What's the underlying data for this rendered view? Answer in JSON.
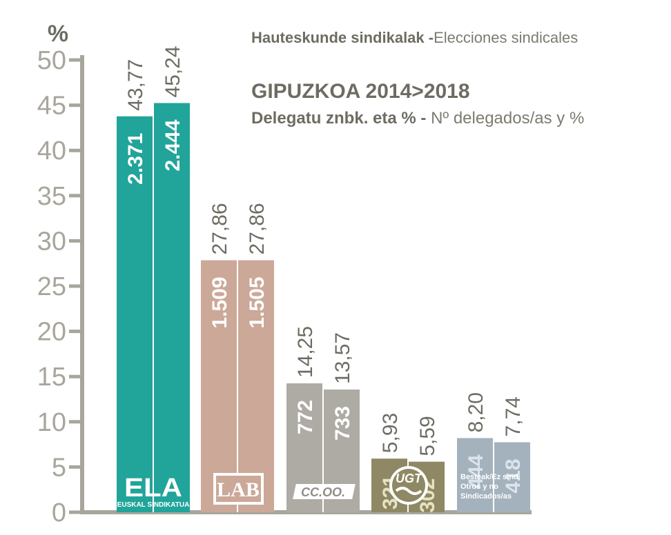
{
  "header": {
    "top_bold": "Hauteskunde sindikalak -",
    "top_light": "Elecciones sindicales",
    "title": "GIPUZKOA 2014>2018",
    "sub_bold": "Delegatu znbk. eta % -",
    "sub_light": "Nº delegados/as y %"
  },
  "chart_data": {
    "type": "bar",
    "title": "GIPUZKOA 2014>2018",
    "ylabel": "%",
    "ylim": [
      0,
      50
    ],
    "yticks": [
      "0",
      "5",
      "10",
      "15",
      "20",
      "25",
      "30",
      "35",
      "40",
      "45",
      "50"
    ],
    "years": [
      "2014",
      "2018"
    ],
    "categories": [
      "ELA",
      "LAB",
      "CC.OO.",
      "UGT",
      "Besteak/Ez sind. Otros y no Sindicados/as"
    ],
    "series": [
      {
        "name": "2014",
        "values": [
          43.77,
          27.86,
          14.25,
          5.93,
          8.2
        ],
        "labels": [
          "43,77",
          "27,86",
          "14,25",
          "5,93",
          "8,20"
        ],
        "delegates": [
          "2.371",
          "1.509",
          "772",
          "321",
          "444"
        ]
      },
      {
        "name": "2018",
        "values": [
          45.24,
          27.86,
          13.57,
          5.59,
          7.74
        ],
        "labels": [
          "45,24",
          "27,86",
          "13,57",
          "5,59",
          "7,74"
        ],
        "delegates": [
          "2.444",
          "1.505",
          "733",
          "302",
          "418"
        ]
      }
    ],
    "colors": [
      "#21a49a",
      "#cba898",
      "#adaba3",
      "#8e8864",
      "#a4b2bd"
    ],
    "value_label_color": "#6e6c62",
    "delegate_label_colors": [
      "#ffffff",
      "#ffffff",
      "#ffffff",
      "#e8e2c0",
      "#dbe4ec"
    ]
  },
  "logos": {
    "ela": {
      "name": "ELA",
      "sub": "EUSKAL SINDIKATUA"
    },
    "lab": {
      "name": "LAB"
    },
    "ccoo": {
      "name": "CC.OO."
    },
    "ugt": {
      "name": "UGT"
    },
    "others": {
      "line1": "Besteak/Ez sind.",
      "line2": "Otros y  no",
      "line3": "Sindicados/as"
    }
  }
}
